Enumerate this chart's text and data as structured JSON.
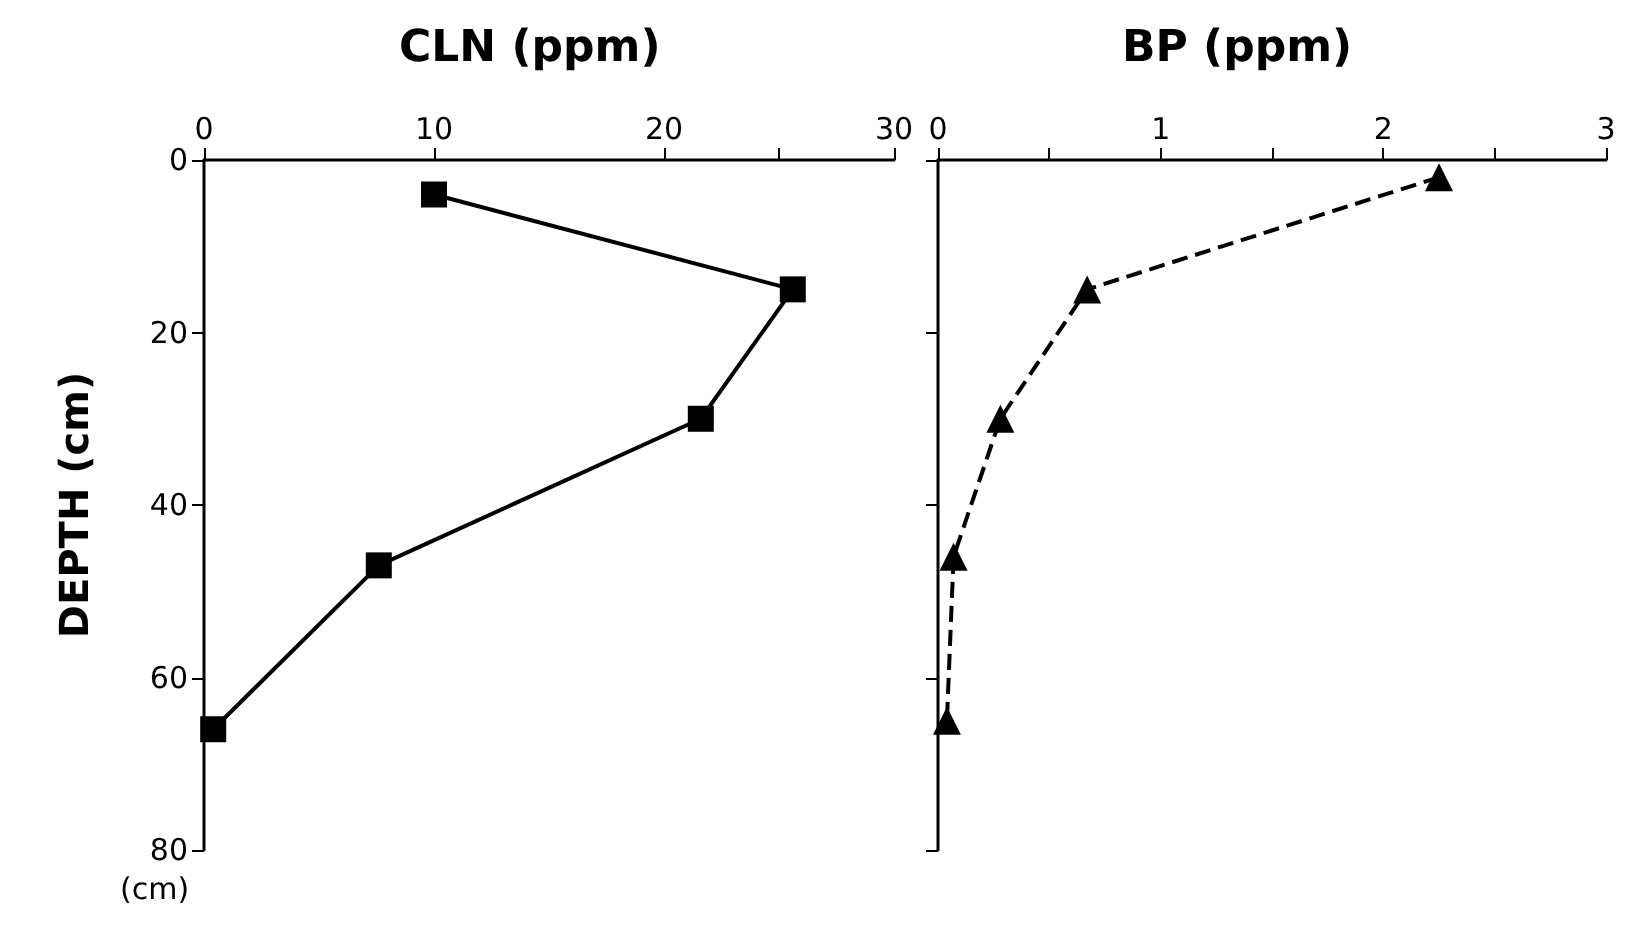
{
  "chart_data": [
    {
      "type": "line",
      "title": "CLN (ppm)",
      "ylabel": "DEPTH (cm)",
      "annotations": [
        "(cm)"
      ],
      "x": [
        10,
        25.6,
        21.6,
        7.6,
        0.4
      ],
      "values": [
        4,
        15,
        30,
        47,
        66
      ],
      "color": "#000000",
      "xlim": [
        0,
        30
      ],
      "xticks": [
        0,
        10,
        20,
        {
          "value": 25,
          "label": null
        },
        30
      ],
      "ylim": [
        80,
        0
      ],
      "yticks": [
        0,
        20,
        40,
        60,
        80
      ],
      "grid": false,
      "marker": "square",
      "line_style": "solid"
    },
    {
      "type": "line",
      "title": "BP (ppm)",
      "x": [
        2.25,
        0.67,
        0.28,
        0.07,
        0.04
      ],
      "values": [
        2,
        15,
        30,
        46,
        65
      ],
      "color": "#000000",
      "xlim": [
        0,
        3
      ],
      "xticks": [
        0,
        {
          "value": 0.5,
          "label": null
        },
        1,
        {
          "value": 1.5,
          "label": null
        },
        2,
        {
          "value": 2.5,
          "label": null
        },
        3
      ],
      "ylim": [
        80,
        0
      ],
      "yticks": [
        0,
        {
          "value": 20,
          "label": null
        },
        {
          "value": 40,
          "label": null
        },
        {
          "value": 60,
          "label": null
        },
        {
          "value": 80,
          "label": null
        }
      ],
      "tick_labels": "x",
      "grid": false,
      "marker": "triangle",
      "line_style": "dashed"
    }
  ]
}
